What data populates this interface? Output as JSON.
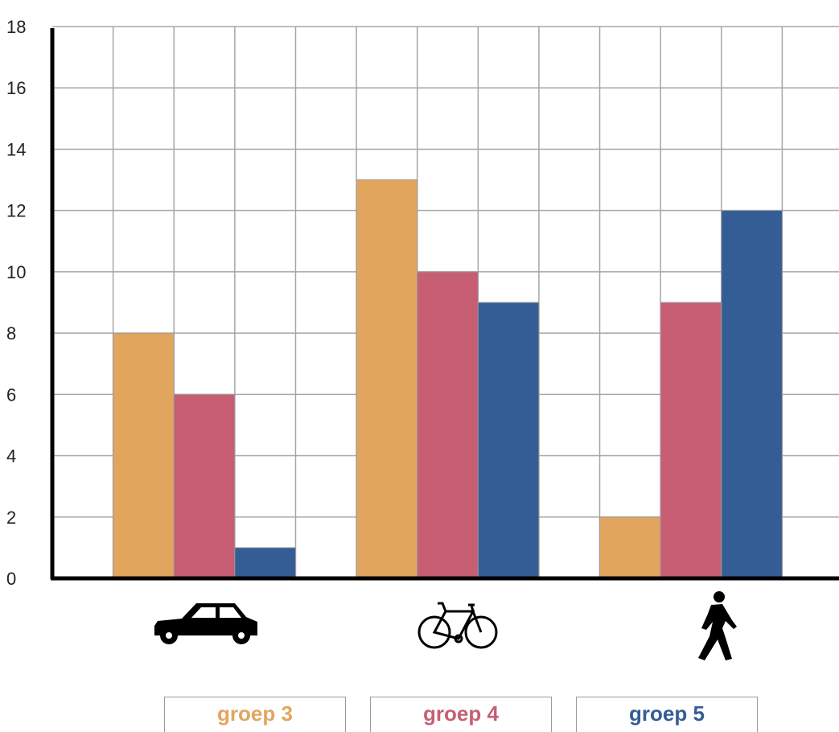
{
  "chart_data": {
    "type": "bar",
    "categories": [
      "car",
      "bicycle",
      "walking"
    ],
    "category_icons": [
      "car-icon",
      "bicycle-icon",
      "pedestrian-icon"
    ],
    "series": [
      {
        "name": "groep 3",
        "color": "#E2A55E",
        "values": [
          8,
          13,
          2
        ]
      },
      {
        "name": "groep 4",
        "color": "#C75E73",
        "values": [
          6,
          10,
          9
        ]
      },
      {
        "name": "groep 5",
        "color": "#345D96",
        "values": [
          1,
          9,
          12
        ]
      }
    ],
    "ylim": [
      0,
      18
    ],
    "yticks": [
      "0",
      "2",
      "4",
      "6",
      "8",
      "10",
      "12",
      "14",
      "16",
      "18"
    ],
    "grid": true,
    "legend_position": "bottom"
  }
}
